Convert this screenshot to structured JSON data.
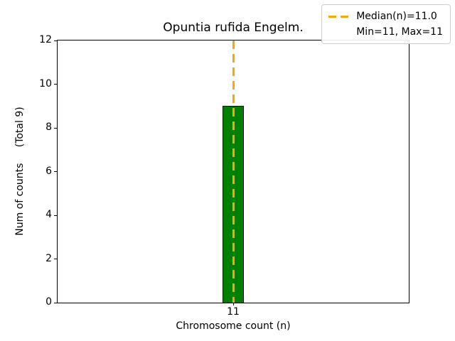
{
  "chart": {
    "title": "Opuntia rufida Engelm.",
    "xlabel": "Chromosome count (n)",
    "ylabel": "Num of counts     (Total 9)"
  },
  "legend": {
    "position": "upper right",
    "entries": [
      {
        "label": "Median(n)=11.0",
        "handle": "orange-dashed-line"
      },
      {
        "label": "Min=11, Max=11",
        "handle": "none"
      }
    ]
  },
  "chart_data": {
    "type": "bar",
    "title": "Opuntia rufida Engelm.",
    "xlabel": "Chromosome count (n)",
    "ylabel": "Num of counts     (Total 9)",
    "categories": [
      "11"
    ],
    "values": [
      9
    ],
    "total_counts": 9,
    "ylim": [
      0,
      12
    ],
    "yticks": [
      0,
      2,
      4,
      6,
      8,
      10,
      12
    ],
    "xticks": [
      "11"
    ],
    "grid": false,
    "legend_position": "upper right",
    "colors": {
      "bar_fill": "#008000",
      "bar_edge": "#000000",
      "median_line": "#FFA500",
      "background": "#ffffff",
      "spine": "#000000"
    },
    "median_line": {
      "x": 11,
      "value": 11.0,
      "style": "dashed",
      "label": "Median(n)=11.0"
    },
    "annotations": [
      "Min=11, Max=11"
    ]
  }
}
